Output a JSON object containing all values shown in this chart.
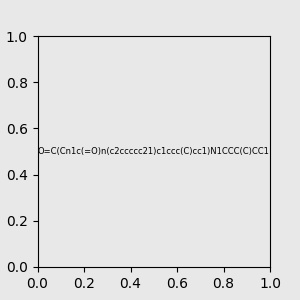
{
  "smiles": "O=C(Cn1c(=O)n(c2ccccc21)c1ccc(C)cc1)N1CCC(C)CC1",
  "background_color": "#e8e8e8",
  "bond_color": "#000000",
  "N_color": "#0000ff",
  "O_color": "#ff0000",
  "figsize": [
    3.0,
    3.0
  ],
  "dpi": 100
}
